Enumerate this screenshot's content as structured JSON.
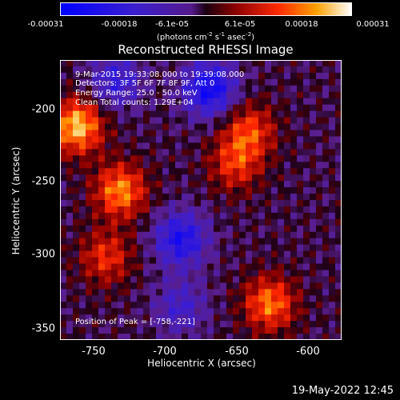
{
  "title": "Reconstructed RHESSI Image",
  "colorbar": {
    "ticks": [
      "-0.00031",
      "-0.00018",
      "-6.1e-05",
      "6.1e-05",
      "0.00018",
      "0.00031"
    ],
    "unit": "(photons cm-2 s-1 asec-2)",
    "min": -0.00031,
    "max": 0.00031
  },
  "info": {
    "time_range": "9-Mar-2015 19:33:08.000 to 19:39:08.000",
    "detectors": "Detectors: 3F 5F 6F 7F 8F 9F, Att 0",
    "energy": "Energy Range: 25.0 - 50.0 keV",
    "algorithm": "Clean     Total counts: 1.29E+04",
    "peak": "Position of Peak = [-758,-221]"
  },
  "axes": {
    "xlabel": "Heliocentric X (arcsec)",
    "ylabel": "Heliocentric Y (arcsec)",
    "x_ticks": [
      "-750",
      "-700",
      "-650",
      "-600"
    ],
    "y_ticks": [
      "-200",
      "-250",
      "-300",
      "-350"
    ],
    "xlim": [
      -774,
      -578
    ],
    "ylim": [
      -357,
      -171
    ]
  },
  "chart_data": {
    "type": "heatmap",
    "title": "Reconstructed RHESSI Image",
    "xlabel": "Heliocentric X (arcsec)",
    "ylabel": "Heliocentric Y (arcsec)",
    "xlim": [
      -774,
      -578
    ],
    "ylim": [
      -357,
      -171
    ],
    "value_range": [
      -0.00031,
      0.00031
    ],
    "peak": [
      -758,
      -221
    ],
    "bright_regions": [
      {
        "x": -762,
        "y": -215,
        "level": 0.9
      },
      {
        "x": -732,
        "y": -258,
        "level": 0.75
      },
      {
        "x": -742,
        "y": -302,
        "level": 0.5
      },
      {
        "x": -628,
        "y": -333,
        "level": 0.7
      },
      {
        "x": -642,
        "y": -218,
        "level": 0.55
      },
      {
        "x": -652,
        "y": -240,
        "level": 0.5
      }
    ],
    "dark_regions": [
      {
        "x": -670,
        "y": -190,
        "level": -0.8
      },
      {
        "x": -690,
        "y": -290,
        "level": -0.7
      },
      {
        "x": -735,
        "y": -185,
        "level": -0.5
      },
      {
        "x": -690,
        "y": -335,
        "level": -0.4
      }
    ]
  },
  "timestamp": "19-May-2022 12:45"
}
